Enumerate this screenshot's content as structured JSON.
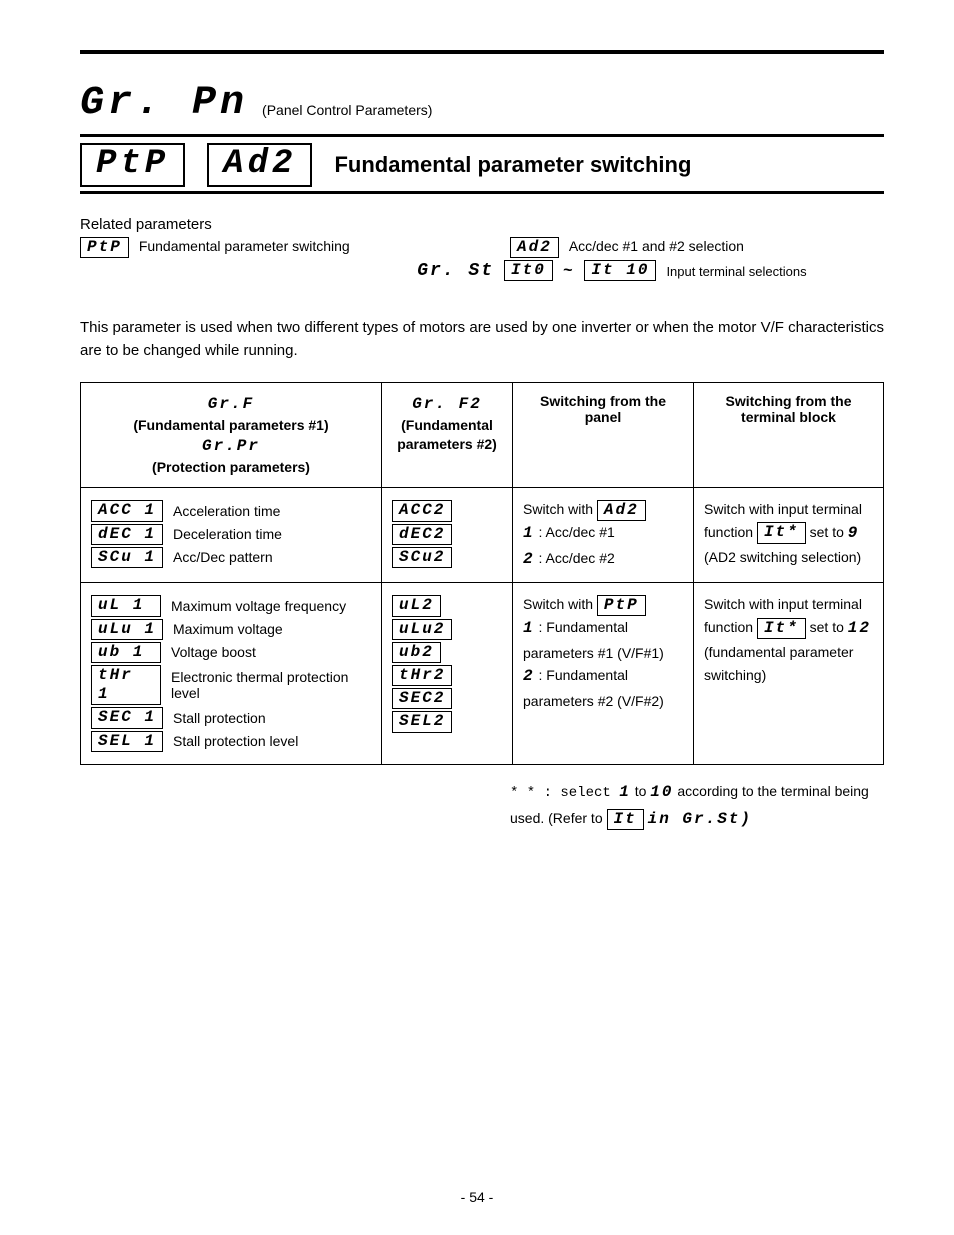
{
  "heading": {
    "group": "Gr. Pn",
    "group_sub": "(Panel Control Parameters)"
  },
  "title": {
    "box1": "PtP",
    "box2": "Ad2",
    "text": "Fundamental parameter switching"
  },
  "related": {
    "heading": "Related parameters",
    "left": {
      "code": "PtP",
      "desc": "Fundamental parameter switching"
    },
    "right_top": {
      "code": "Ad2",
      "desc": "Acc/dec #1 and #2 selection"
    },
    "right_bot": {
      "prefix": "Gr. St",
      "a": "It0",
      "tilde": "~",
      "b": "It 10",
      "desc": "Input terminal selections"
    }
  },
  "intro": "This parameter is used when two different types of motors are used by one inverter or when the motor V/F characteristics are to be changed while running.",
  "table": {
    "head": {
      "c1_l1": "Gr.F",
      "c1_l2": "(Fundamental parameters #1)",
      "c1_l3": "Gr.Pr",
      "c1_l4": "(Protection parameters)",
      "c2_l1": "Gr. F2",
      "c2_l2": "(Fundamental parameters #2)",
      "c3": "Switching from the panel",
      "c4": "Switching from the terminal block"
    },
    "row1": {
      "c1": [
        {
          "code": "ACC 1",
          "label": "Acceleration time"
        },
        {
          "code": "dEC 1",
          "label": "Deceleration time"
        },
        {
          "code": "SCu 1",
          "label": "Acc/Dec pattern"
        }
      ],
      "c2": [
        "ACC2",
        "dEC2",
        "SCu2"
      ],
      "c3_pre": "Switch with ",
      "c3_code": "Ad2",
      "c3_l2_code": "1",
      "c3_l2_txt": ": Acc/dec #1",
      "c3_l3_code": "2",
      "c3_l3_txt": ": Acc/dec #2",
      "c4_pre": "Switch with input terminal function ",
      "c4_code": "It*",
      "c4_mid": " set to ",
      "c4_num": "9",
      "c4_tail": " (AD2 switching selection)"
    },
    "row2": {
      "c1": [
        {
          "code": "uL 1",
          "label": "Maximum voltage frequency"
        },
        {
          "code": "uLu 1",
          "label": "Maximum voltage"
        },
        {
          "code": "ub 1",
          "label": "Voltage boost"
        },
        {
          "code": "tHr 1",
          "label": "Electronic thermal protection level"
        },
        {
          "code": "SEC 1",
          "label": "Stall protection"
        },
        {
          "code": "SEL 1",
          "label": "Stall protection level"
        }
      ],
      "c2": [
        "uL2",
        "uLu2",
        "ub2",
        "tHr2",
        "SEC2",
        "SEL2"
      ],
      "c3_pre": "Switch with ",
      "c3_code": "PtP",
      "c3_l2_code": "1",
      "c3_l2_txt": ": Fundamental parameters #1 (V/F#1)",
      "c3_l3_code": "2",
      "c3_l3_txt": ": Fundamental parameters #2 (V/F#2)",
      "c4_pre": "Switch with input terminal function ",
      "c4_code": "It*",
      "c4_mid": " set to ",
      "c4_num": "12",
      "c4_tail": " (fundamental parameter switching)"
    }
  },
  "footnote": {
    "pre": "* * :  select ",
    "a": "1",
    "mid": " to ",
    "b": "10",
    "post": " according to the terminal being used. (Refer to ",
    "box": "It",
    "tail": " in Gr.St)"
  },
  "page": "- 54 -"
}
